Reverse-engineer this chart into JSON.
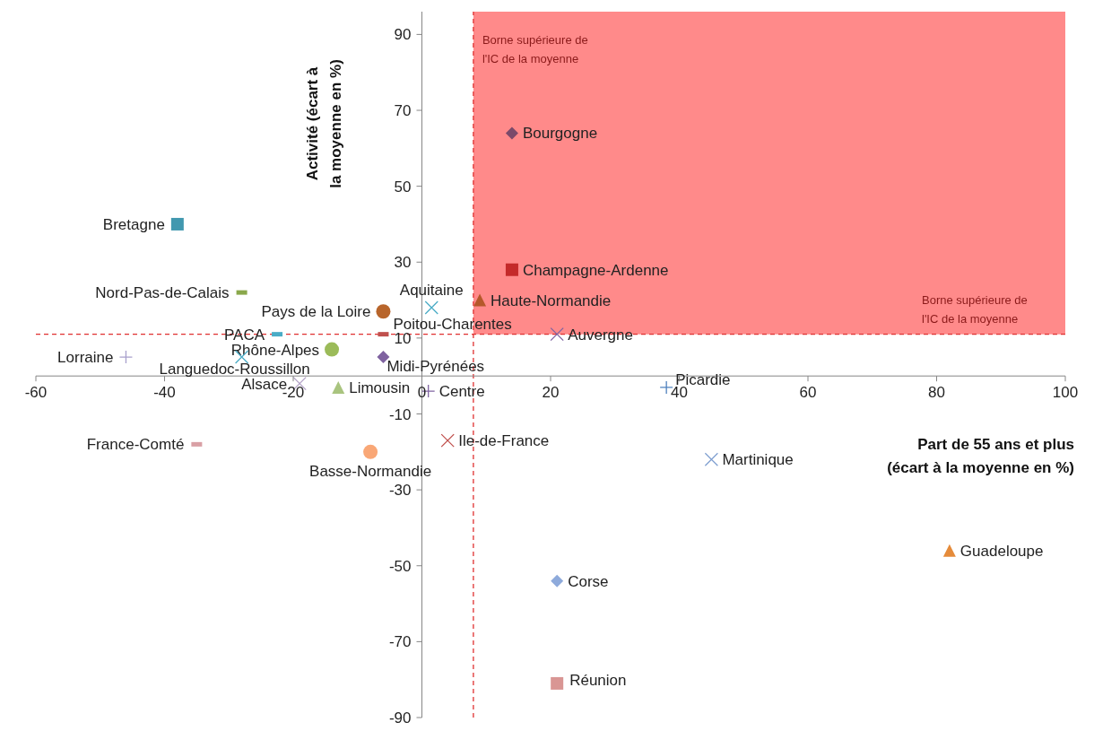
{
  "chart_data": {
    "type": "scatter",
    "xlabel": "Part de 55 ans et plus (écart à la moyenne en %)",
    "ylabel": "Activité (écart à la moyenne en %)",
    "xlim": [
      -60,
      100
    ],
    "xticks": [
      -60,
      -40,
      -20,
      0,
      20,
      40,
      60,
      80,
      100
    ],
    "ylim": [
      -90,
      96
    ],
    "yticks": [
      90,
      70,
      50,
      30,
      10,
      -10,
      -30,
      -50,
      -70,
      -90
    ],
    "ref_lines": [
      {
        "axis": "x",
        "value": 8,
        "label": "Borne supérieure de l'IC de la moyenne",
        "color": "#e03030",
        "line_style": "dashed"
      },
      {
        "axis": "y",
        "value": 11,
        "label": "Borne supérieure de l'IC de la moyenne",
        "color": "#e03030",
        "line_style": "dashed"
      }
    ],
    "grid": false,
    "bands": [
      {
        "axis": "x",
        "from": 8,
        "to": 100,
        "color": "#ff8a8a"
      }
    ],
    "series": [
      {
        "name": "Bretagne",
        "color": "#4198af",
        "marker": "square",
        "x": [
          -38
        ],
        "values": [
          40
        ]
      },
      {
        "name": "Nord-Pas-de-Calais",
        "color": "#8aa84b",
        "x": [
          -28
        ],
        "values": [
          22
        ]
      },
      {
        "name": "Pays de la Loire",
        "color": "#b8652b",
        "marker": "circle",
        "x": [
          -6
        ],
        "values": [
          17
        ]
      },
      {
        "name": "Aquitaine",
        "color": "#4aacc6",
        "marker": "cross",
        "x": [
          1.5
        ],
        "values": [
          18
        ]
      },
      {
        "name": "Haute-Normandie",
        "color": "#b5582a",
        "marker": "triangle",
        "x": [
          9
        ],
        "values": [
          20
        ]
      },
      {
        "name": "Champagne-Ardenne",
        "color": "#c42a2a",
        "marker": "square",
        "x": [
          14
        ],
        "values": [
          28
        ]
      },
      {
        "name": "Bourgogne",
        "color": "#7b4a6a",
        "marker": "diamond",
        "x": [
          14
        ],
        "values": [
          64
        ]
      },
      {
        "name": "PACA",
        "color": "#4aacc6",
        "x": [
          -22.5
        ],
        "values": [
          11
        ]
      },
      {
        "name": "Poitou-Charentes",
        "color": "#c0504d",
        "x": [
          -6
        ],
        "values": [
          11
        ]
      },
      {
        "name": "Auvergne",
        "color": "#8064a2",
        "marker": "cross",
        "x": [
          21
        ],
        "values": [
          11
        ]
      },
      {
        "name": "Rhône-Alpes",
        "color": "#9bbb59",
        "marker": "circle",
        "x": [
          -14
        ],
        "values": [
          7
        ]
      },
      {
        "name": "Midi-Pyrénées",
        "color": "#7f62a0",
        "marker": "diamond",
        "x": [
          -6
        ],
        "values": [
          5
        ]
      },
      {
        "name": "Lorraine",
        "color": "#a8a0cc",
        "marker": "plus",
        "x": [
          -46
        ],
        "values": [
          5
        ]
      },
      {
        "name": "Languedoc-Roussillon",
        "color": "#4bacc6",
        "marker": "cross",
        "x": [
          -28
        ],
        "values": [
          5
        ]
      },
      {
        "name": "Alsace",
        "color": "#b3a2c7",
        "marker": "cross",
        "x": [
          -19
        ],
        "values": [
          -2
        ]
      },
      {
        "name": "Limousin",
        "color": "#a9c47f",
        "marker": "triangle",
        "x": [
          -13
        ],
        "values": [
          -3
        ]
      },
      {
        "name": "Centre",
        "color": "#8064a2",
        "marker": "plus",
        "x": [
          1
        ],
        "values": [
          -4
        ]
      },
      {
        "name": "Picardie",
        "color": "#4f81bd",
        "marker": "plus",
        "x": [
          38
        ],
        "values": [
          -3
        ]
      },
      {
        "name": "France-Comté",
        "color": "#d9a0a5",
        "x": [
          -35
        ],
        "values": [
          -18
        ]
      },
      {
        "name": "Basse-Normandie",
        "color": "#f9a776",
        "marker": "circle",
        "x": [
          -8
        ],
        "values": [
          -20
        ]
      },
      {
        "name": "Ile-de-France",
        "color": "#c0504d",
        "marker": "cross",
        "x": [
          4
        ],
        "values": [
          -17
        ]
      },
      {
        "name": "Martinique",
        "color": "#7f9fd0",
        "marker": "cross",
        "x": [
          45
        ],
        "values": [
          -22
        ]
      },
      {
        "name": "Guadeloupe",
        "color": "#e58b3a",
        "marker": "triangle",
        "x": [
          82
        ],
        "values": [
          -46
        ]
      },
      {
        "name": "Corse",
        "color": "#8eaadb",
        "marker": "diamond",
        "x": [
          21
        ],
        "values": [
          -54
        ]
      },
      {
        "name": "Réunion",
        "color": "#d99694",
        "marker": "square",
        "x": [
          21
        ],
        "values": [
          -81
        ]
      }
    ]
  }
}
